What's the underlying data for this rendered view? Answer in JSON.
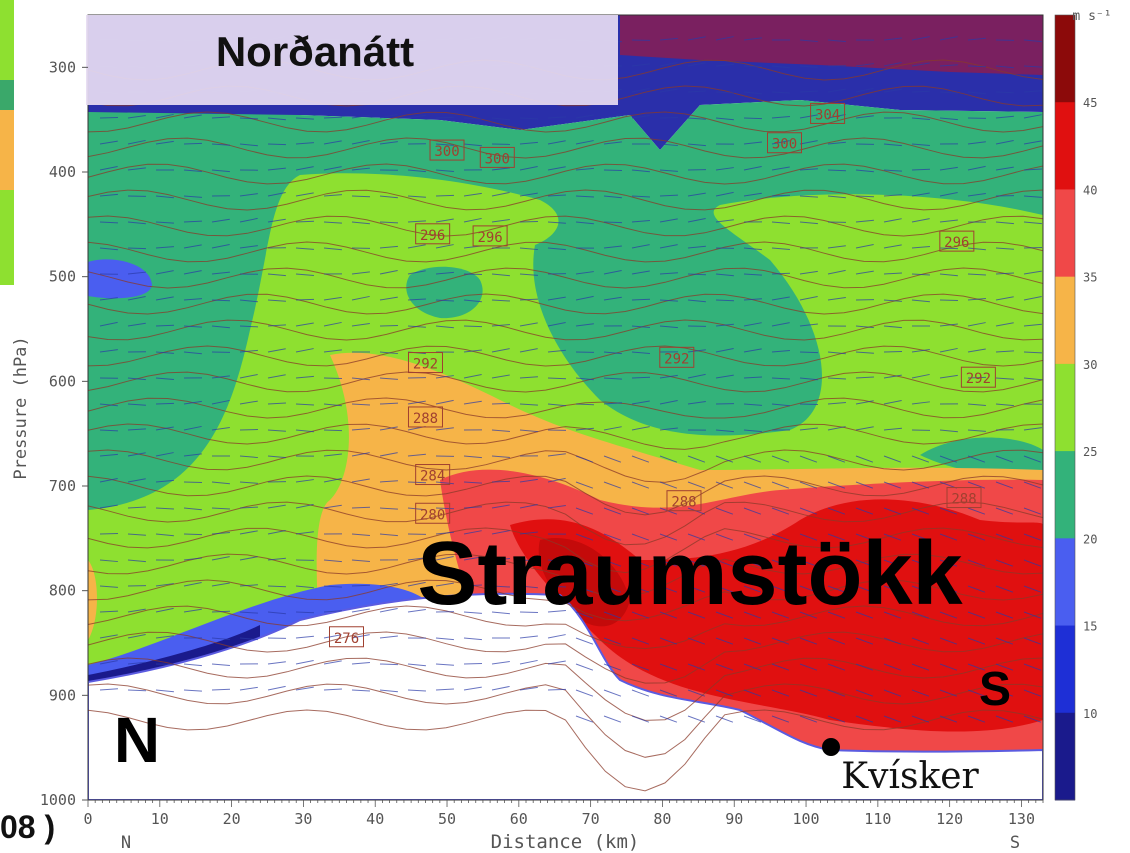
{
  "overlay": {
    "banner_title": "Norðanátt",
    "feature_label": "Straumstökk",
    "north_marker": "N",
    "south_marker": "S",
    "place_label": "Kvísker",
    "edge_fragment": "08 )"
  },
  "chart_data": {
    "type": "heatmap",
    "title": "",
    "xlabel": "Distance (km)",
    "ylabel": "Pressure (hPa)",
    "xlim": [
      0,
      133
    ],
    "ylim": [
      1000,
      250
    ],
    "x_ticks": [
      0,
      10,
      20,
      30,
      40,
      50,
      60,
      70,
      80,
      90,
      100,
      110,
      120,
      130
    ],
    "y_ticks": [
      300,
      400,
      500,
      600,
      700,
      800,
      900,
      1000
    ],
    "x_end_labels": {
      "left": "N",
      "right": "S"
    },
    "colorbar": {
      "unit": "m s⁻¹",
      "levels": [
        10,
        15,
        20,
        25,
        30,
        35,
        40,
        45
      ],
      "colors": [
        "#1a1a8c",
        "#1e2fd6",
        "#4a5ef0",
        "#33b27a",
        "#8ee030",
        "#f6b448",
        "#f04848",
        "#e01010",
        "#8c0a0a"
      ]
    },
    "isentrope_labels": [
      {
        "value": "276",
        "x": 36,
        "p": 845
      },
      {
        "value": "280",
        "x": 48,
        "p": 727
      },
      {
        "value": "284",
        "x": 48,
        "p": 690
      },
      {
        "value": "288",
        "x": 47,
        "p": 635
      },
      {
        "value": "292",
        "x": 47,
        "p": 583
      },
      {
        "value": "296",
        "x": 48,
        "p": 460
      },
      {
        "value": "296",
        "x": 56,
        "p": 462
      },
      {
        "value": "300",
        "x": 50,
        "p": 380
      },
      {
        "value": "300",
        "x": 57,
        "p": 387
      },
      {
        "value": "300",
        "x": 97,
        "p": 373
      },
      {
        "value": "304",
        "x": 103,
        "p": 345
      },
      {
        "value": "292",
        "x": 82,
        "p": 578
      },
      {
        "value": "292",
        "x": 124,
        "p": 597
      },
      {
        "value": "288",
        "x": 83,
        "p": 715
      },
      {
        "value": "288",
        "x": 122,
        "p": 712
      },
      {
        "value": "296",
        "x": 121,
        "p": 467
      }
    ],
    "annotations": [
      {
        "text": "Kvísker",
        "x": 104,
        "p": 995,
        "type": "point"
      }
    ]
  }
}
